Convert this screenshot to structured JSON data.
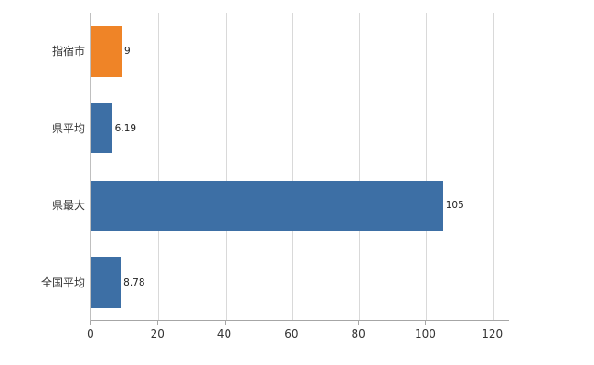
{
  "chart_data": {
    "type": "bar",
    "orientation": "horizontal",
    "title": "",
    "xlabel": "",
    "ylabel": "",
    "categories": [
      "指宿市",
      "県平均",
      "県最大",
      "全国平均"
    ],
    "values": [
      9,
      6.19,
      105,
      8.78
    ],
    "value_labels": [
      "9",
      "6.19",
      "105",
      "8.78"
    ],
    "bar_colors": [
      "#ef8427",
      "#3d6fa5",
      "#3d6fa5",
      "#3d6fa5"
    ],
    "xlim": [
      0,
      125
    ],
    "x_ticks": [
      0,
      20,
      40,
      60,
      80,
      100,
      120
    ],
    "x_tick_labels": [
      "0",
      "20",
      "40",
      "60",
      "80",
      "100",
      "120"
    ],
    "grid": "vertical",
    "legend": "none",
    "colors": {
      "highlight_bar": "#ef8427",
      "default_bar": "#3d6fa5",
      "gridline": "#d9d9d9",
      "axis": "#a6a6a6",
      "tick_text": "#333333",
      "value_text": "#222222"
    }
  }
}
